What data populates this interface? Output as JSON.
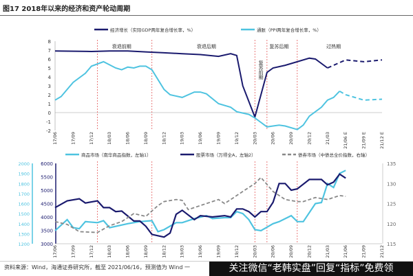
{
  "title": "图17 2018年以来的经济和资产轮动周期",
  "source": "资料来源：Wind，海通证券研究所，截至 2021/06/16，预测值为 Wind 一",
  "watermark": "关注微信“老韩实盘”回复“指标”免费领",
  "x_ticks": [
    "17/06",
    "17/09",
    "17/12",
    "18/03",
    "18/06",
    "18/09",
    "18/12",
    "19/03",
    "19/06",
    "19/09",
    "19/12",
    "20/03",
    "20/06",
    "20/09",
    "20/12",
    "21/03",
    "21/06 E",
    "21/09 E",
    "21/12 E"
  ],
  "x_ticks_bottom": [
    "17/06",
    "17/09",
    "17/12",
    "18/03",
    "18/06",
    "18/09",
    "18/12",
    "19/03",
    "19/06",
    "19/09",
    "19/12",
    "20/03",
    "20/06",
    "20/09",
    "20/12",
    "21/03",
    "21/06",
    "21/09",
    "21/12"
  ],
  "phase_dividers": [
    "18/01",
    "18/10",
    "20/03",
    "20/05",
    "20/10"
  ],
  "chart_data": [
    {
      "type": "line",
      "ylim": [
        -2,
        8
      ],
      "yticks": [
        -2,
        -1,
        0,
        1,
        2,
        3,
        4,
        5,
        6,
        7,
        8
      ],
      "phases": [
        {
          "label": "衰退前期",
          "at": "18/05"
        },
        {
          "label": "衰退后期",
          "at": "19/07"
        },
        {
          "label": "复苏前期",
          "at": "20/04",
          "vertical": true
        },
        {
          "label": "复苏后期",
          "at": "20/07"
        },
        {
          "label": "过热期",
          "at": "21/04"
        }
      ],
      "series": [
        {
          "name": "经济增长（实际GDP两年复合增长率，%）",
          "color": "#1a1a6e",
          "x": [
            "17/06",
            "17/12",
            "18/03",
            "18/06",
            "18/09",
            "18/12",
            "19/03",
            "19/06",
            "19/09",
            "19/11",
            "19/12",
            "20/01",
            "20/03",
            "20/05",
            "20/06",
            "20/08",
            "20/09",
            "20/12",
            "21/01",
            "21/03"
          ],
          "values": [
            6.9,
            6.85,
            6.9,
            6.9,
            6.8,
            6.7,
            6.6,
            6.5,
            6.3,
            6.6,
            6.4,
            3.0,
            -0.5,
            4.5,
            5.0,
            5.3,
            5.5,
            6.1,
            6.0,
            5.0
          ],
          "forecast_x": [
            "21/03",
            "21/06",
            "21/09",
            "21/12"
          ],
          "forecast": [
            5.0,
            5.9,
            5.7,
            5.9
          ]
        },
        {
          "name": "通胀（PPI两年复合增长率，%）",
          "color": "#4ec3e0",
          "x": [
            "17/06",
            "17/07",
            "17/09",
            "17/11",
            "17/12",
            "18/02",
            "18/04",
            "18/05",
            "18/06",
            "18/07",
            "18/08",
            "18/09",
            "18/10",
            "18/12",
            "19/01",
            "19/03",
            "19/05",
            "19/06",
            "19/07",
            "19/09",
            "19/11",
            "19/12",
            "20/02",
            "20/03",
            "20/05",
            "20/06",
            "20/07",
            "20/08",
            "20/10",
            "20/11",
            "20/12",
            "21/02",
            "21/03",
            "21/04",
            "21/05"
          ],
          "values": [
            1.4,
            1.8,
            3.4,
            4.4,
            5.2,
            5.7,
            5.0,
            4.8,
            5.1,
            5.0,
            5.2,
            5.2,
            4.8,
            2.6,
            2.0,
            1.7,
            2.3,
            2.3,
            2.1,
            1.0,
            0.6,
            0.1,
            -0.2,
            -0.6,
            -1.6,
            -1.5,
            -1.4,
            -1.5,
            -1.9,
            -1.4,
            -0.4,
            0.6,
            1.4,
            1.7,
            2.4
          ],
          "forecast_x": [
            "21/05",
            "21/06",
            "21/09",
            "21/12"
          ],
          "forecast": [
            2.4,
            2.0,
            1.4,
            1.5
          ]
        }
      ]
    },
    {
      "type": "line",
      "ylim_left1": [
        1200,
        2000
      ],
      "ylim_left2": [
        3000,
        6000
      ],
      "ylim_right": [
        115,
        135
      ],
      "yticks_left1": [
        1200,
        1300,
        1400,
        1500,
        1600,
        1700,
        1800,
        1900,
        2000
      ],
      "yticks_left2": [
        3000,
        3500,
        4000,
        4500,
        5000,
        5500,
        6000
      ],
      "yticks_right": [
        115,
        120,
        125,
        130,
        135
      ],
      "series": [
        {
          "name": "商品市场（南华商品指数，左轴1）",
          "color": "#4ec3e0",
          "axis": "left1",
          "x": [
            "17/06",
            "17/08",
            "17/09",
            "17/10",
            "17/11",
            "18/01",
            "18/02",
            "18/03",
            "18/06",
            "18/08",
            "18/10",
            "18/11",
            "18/12",
            "19/02",
            "19/03",
            "19/05",
            "19/07",
            "19/08",
            "19/10",
            "19/11",
            "19/12",
            "20/01",
            "20/02",
            "20/03",
            "20/04",
            "20/06",
            "20/07",
            "20/09",
            "20/10",
            "20/11",
            "21/01",
            "21/02",
            "21/03",
            "21/04",
            "21/05",
            "21/06"
          ],
          "values": [
            1330,
            1440,
            1360,
            1350,
            1420,
            1410,
            1430,
            1360,
            1400,
            1420,
            1430,
            1320,
            1340,
            1410,
            1410,
            1450,
            1480,
            1450,
            1460,
            1460,
            1520,
            1500,
            1440,
            1340,
            1330,
            1400,
            1420,
            1480,
            1420,
            1420,
            1600,
            1610,
            1800,
            1760,
            1900,
            1930
          ]
        },
        {
          "name": "股票市场（万得全A，左轴2）",
          "color": "#1a1a6e",
          "axis": "left2",
          "x": [
            "17/06",
            "17/08",
            "17/10",
            "17/11",
            "18/01",
            "18/02",
            "18/03",
            "18/04",
            "18/05",
            "18/07",
            "18/08",
            "18/09",
            "18/10",
            "18/12",
            "19/01",
            "19/02",
            "19/03",
            "19/05",
            "19/06",
            "19/08",
            "19/10",
            "19/11",
            "19/12",
            "20/01",
            "20/02",
            "20/03",
            "20/04",
            "20/05",
            "20/06",
            "20/07",
            "20/08",
            "20/09",
            "20/10",
            "20/12",
            "21/02",
            "21/03",
            "21/04",
            "21/05",
            "21/06"
          ],
          "values": [
            4350,
            4600,
            4680,
            4520,
            4600,
            4350,
            4350,
            4200,
            4220,
            3850,
            3850,
            3650,
            3350,
            3250,
            3400,
            4100,
            4250,
            3900,
            4050,
            4000,
            4050,
            4000,
            4300,
            4300,
            4200,
            4000,
            4200,
            4200,
            4550,
            5250,
            5250,
            5000,
            5050,
            5400,
            5400,
            5200,
            5300,
            5600,
            5450
          ]
        },
        {
          "name": "债券市场（中债总全价指数，右轴）",
          "color": "#888888",
          "axis": "right",
          "dashed": true,
          "x": [
            "17/06",
            "17/08",
            "17/10",
            "18/01",
            "18/03",
            "18/05",
            "18/07",
            "18/09",
            "18/11",
            "18/12",
            "19/02",
            "19/03",
            "19/04",
            "19/06",
            "19/09",
            "19/10",
            "19/12",
            "20/01",
            "20/03",
            "20/04",
            "20/06",
            "20/08",
            "20/10",
            "20/11",
            "21/01",
            "21/03",
            "21/05",
            "21/06"
          ],
          "values": [
            120.5,
            119.8,
            118,
            117.8,
            119.5,
            120.5,
            122.5,
            121.8,
            124.5,
            125.5,
            126,
            125.8,
            123.5,
            124.5,
            126,
            125,
            127,
            128,
            130,
            131.5,
            128,
            126,
            125.5,
            125.5,
            126.5,
            126,
            127,
            126.8
          ]
        }
      ]
    }
  ]
}
